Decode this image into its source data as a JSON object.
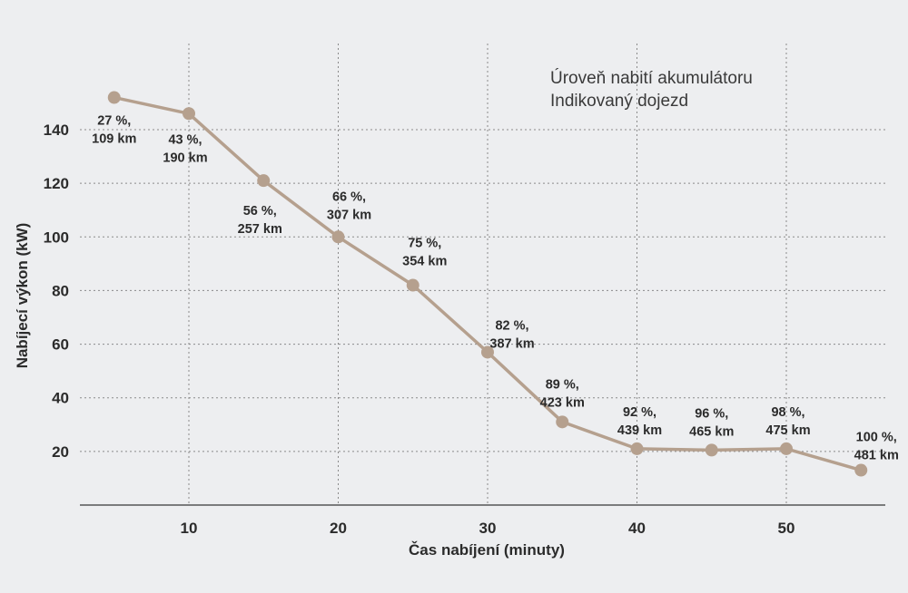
{
  "chart_data": {
    "type": "line",
    "xlabel": "Čas nabíjení (minuty)",
    "ylabel": "Nabíjecí výkon (kW)",
    "legend": [
      "Úroveň nabití akumulátoru",
      "Indikovaný dojezd"
    ],
    "legend_position": "top-right",
    "x_ticks": [
      10,
      20,
      30,
      40,
      50
    ],
    "y_ticks": [
      20,
      40,
      60,
      80,
      100,
      120,
      140
    ],
    "xlim": [
      2,
      57
    ],
    "ylim": [
      0,
      153
    ],
    "grid": true,
    "color": "#b5a08e",
    "points": [
      {
        "x": 5,
        "y": 152,
        "charge": "27 %,",
        "range": "109 km"
      },
      {
        "x": 10,
        "y": 146,
        "charge": "43 %,",
        "range": "190 km"
      },
      {
        "x": 15,
        "y": 121,
        "charge": "56 %,",
        "range": "257 km"
      },
      {
        "x": 20,
        "y": 100,
        "charge": "66 %,",
        "range": "307 km"
      },
      {
        "x": 25,
        "y": 82,
        "charge": "75 %,",
        "range": "354 km"
      },
      {
        "x": 30,
        "y": 57,
        "charge": "82 %,",
        "range": "387 km"
      },
      {
        "x": 35,
        "y": 31,
        "charge": "89 %,",
        "range": "423 km"
      },
      {
        "x": 40,
        "y": 21,
        "charge": "92 %,",
        "range": "439 km"
      },
      {
        "x": 45,
        "y": 20.5,
        "charge": "96 %,",
        "range": "465 km"
      },
      {
        "x": 50,
        "y": 21,
        "charge": "98 %,",
        "range": "475 km"
      },
      {
        "x": 55,
        "y": 13,
        "charge": "100 %,",
        "range": "481 km"
      }
    ]
  }
}
